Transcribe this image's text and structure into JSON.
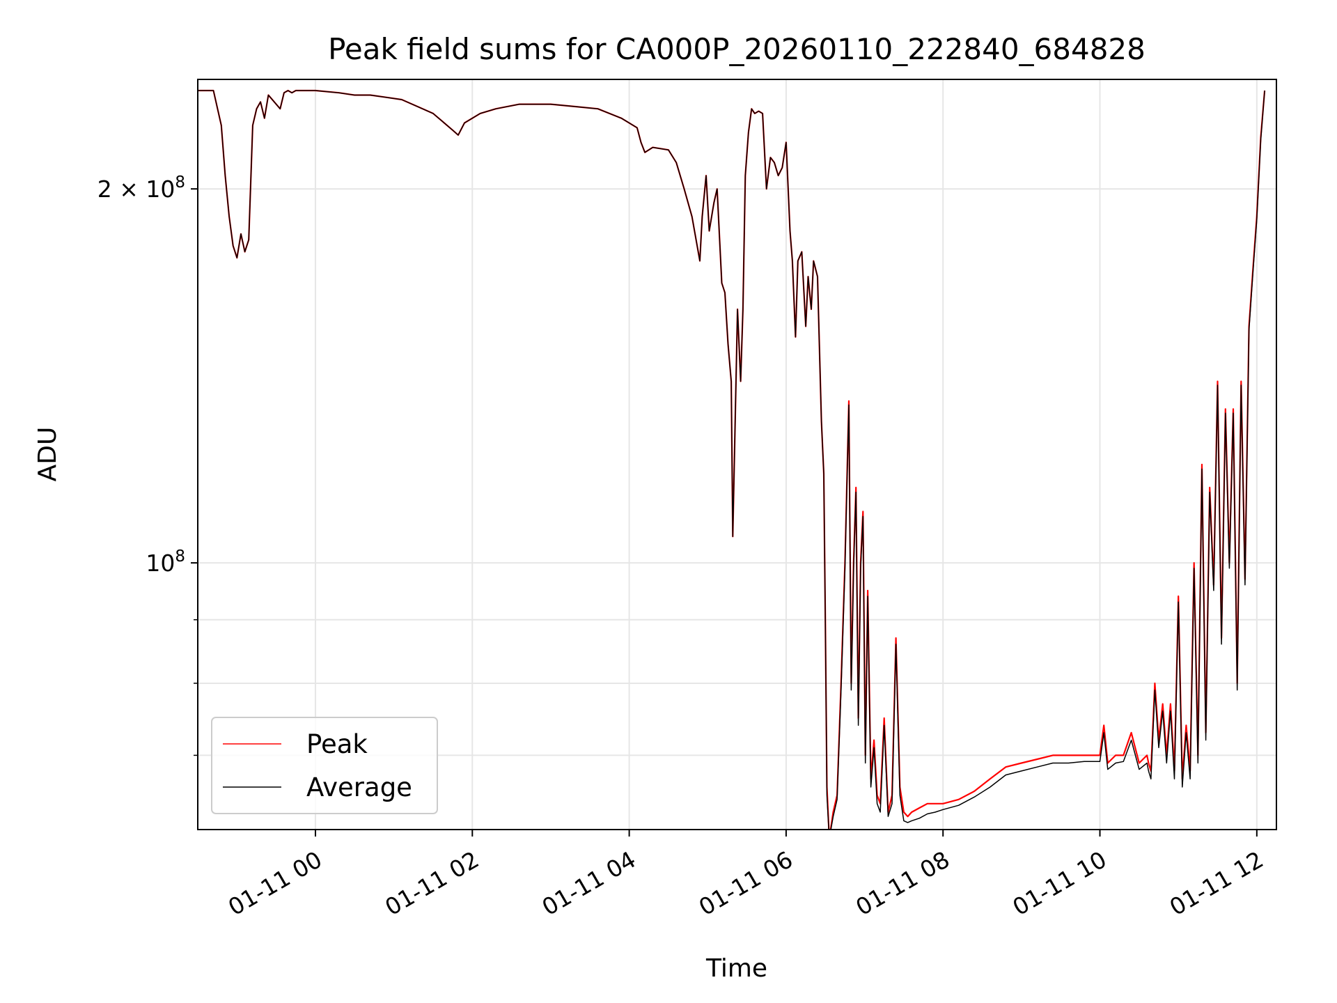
{
  "chart_data": {
    "type": "line",
    "title": "Peak field sums for CA000P_20260110_222840_684828",
    "xlabel": "Time",
    "ylabel": "ADU",
    "y_scale": "log",
    "grid": true,
    "legend_position": "lower-left",
    "x_ticks": [
      "01-11 00",
      "01-11 02",
      "01-11 04",
      "01-11 06",
      "01-11 08",
      "01-11 10",
      "01-11 12"
    ],
    "y_ticks": [
      {
        "value": 200000000,
        "label": "2 × 10^8"
      },
      {
        "value": 100000000,
        "label": "10^8"
      }
    ],
    "x_range_hours": [
      -1.5,
      12.25
    ],
    "ylim": [
      61000000,
      245000000
    ],
    "series": [
      {
        "name": "Peak",
        "color": "#ff0000",
        "x_hours": [
          -1.5,
          -1.3,
          -1.2,
          -1.15,
          -1.1,
          -1.05,
          -1.0,
          -0.95,
          -0.9,
          -0.85,
          -0.8,
          -0.75,
          -0.7,
          -0.65,
          -0.6,
          -0.55,
          -0.45,
          -0.4,
          -0.35,
          -0.3,
          -0.25,
          -0.2,
          -0.1,
          0.0,
          0.3,
          0.5,
          0.7,
          0.9,
          1.1,
          1.3,
          1.5,
          1.75,
          1.82,
          1.9,
          2.1,
          2.3,
          2.6,
          3.0,
          3.3,
          3.6,
          3.9,
          4.1,
          4.15,
          4.2,
          4.3,
          4.5,
          4.6,
          4.7,
          4.8,
          4.9,
          4.93,
          4.98,
          5.02,
          5.08,
          5.12,
          5.18,
          5.22,
          5.26,
          5.3,
          5.32,
          5.38,
          5.42,
          5.45,
          5.48,
          5.52,
          5.56,
          5.6,
          5.65,
          5.7,
          5.75,
          5.8,
          5.85,
          5.9,
          5.95,
          6.0,
          6.05,
          6.08,
          6.12,
          6.15,
          6.2,
          6.25,
          6.28,
          6.32,
          6.35,
          6.4,
          6.45,
          6.48,
          6.5,
          6.52,
          6.55,
          6.6,
          6.65,
          6.7,
          6.75,
          6.8,
          6.83,
          6.86,
          6.89,
          6.92,
          6.95,
          6.98,
          7.01,
          7.04,
          7.08,
          7.12,
          7.16,
          7.2,
          7.25,
          7.3,
          7.35,
          7.4,
          7.45,
          7.5,
          7.55,
          7.6,
          7.7,
          7.8,
          7.9,
          8.0,
          8.2,
          8.4,
          8.6,
          8.8,
          9.0,
          9.2,
          9.4,
          9.6,
          9.8,
          10.0,
          10.05,
          10.1,
          10.2,
          10.3,
          10.4,
          10.5,
          10.6,
          10.62,
          10.65,
          10.7,
          10.75,
          10.8,
          10.85,
          10.9,
          10.95,
          11.0,
          11.05,
          11.1,
          11.15,
          11.2,
          11.25,
          11.3,
          11.35,
          11.4,
          11.45,
          11.5,
          11.55,
          11.6,
          11.65,
          11.7,
          11.75,
          11.8,
          11.85,
          11.9,
          11.95,
          12.0,
          12.05,
          12.1
        ],
        "values": [
          240000000,
          240000000,
          225000000,
          205000000,
          190000000,
          180000000,
          176000000,
          184000000,
          178000000,
          182000000,
          225000000,
          232000000,
          235000000,
          228000000,
          238000000,
          236000000,
          232000000,
          239000000,
          240000000,
          239000000,
          240000000,
          240000000,
          240000000,
          240000000,
          239000000,
          238000000,
          238000000,
          237000000,
          236000000,
          233000000,
          230000000,
          223000000,
          221000000,
          226000000,
          230000000,
          232000000,
          234000000,
          234000000,
          233000000,
          232000000,
          228000000,
          224000000,
          218000000,
          214000000,
          216000000,
          215000000,
          210000000,
          200000000,
          190000000,
          175000000,
          190000000,
          205000000,
          185000000,
          195000000,
          200000000,
          168000000,
          165000000,
          150000000,
          140000000,
          105000000,
          160000000,
          140000000,
          160000000,
          205000000,
          222000000,
          232000000,
          230000000,
          231000000,
          230000000,
          200000000,
          212000000,
          210000000,
          205000000,
          208000000,
          218000000,
          185000000,
          175000000,
          152000000,
          175000000,
          178000000,
          155000000,
          170000000,
          160000000,
          175000000,
          170000000,
          130000000,
          118000000,
          90000000,
          66000000,
          60000000,
          63000000,
          65000000,
          80000000,
          100000000,
          135000000,
          80000000,
          100000000,
          115000000,
          75000000,
          100000000,
          110000000,
          70000000,
          95000000,
          67000000,
          72000000,
          65000000,
          64000000,
          75000000,
          63000000,
          65000000,
          87000000,
          66000000,
          63000000,
          62500000,
          63000000,
          63500000,
          64000000,
          64000000,
          64000000,
          64500000,
          65500000,
          67000000,
          68500000,
          69000000,
          69500000,
          70000000,
          70000000,
          70000000,
          70000000,
          74000000,
          69000000,
          70000000,
          70000000,
          73000000,
          69000000,
          70000000,
          69000000,
          68000000,
          80000000,
          72000000,
          77000000,
          70000000,
          77000000,
          68000000,
          94000000,
          67000000,
          74000000,
          68000000,
          100000000,
          70000000,
          120000000,
          73000000,
          115000000,
          96000000,
          140000000,
          87000000,
          133000000,
          100000000,
          133000000,
          80000000,
          140000000,
          97000000,
          155000000,
          172000000,
          190000000,
          220000000,
          240000000
        ]
      },
      {
        "name": "Average",
        "color": "#000000",
        "x_hours": [
          -1.5,
          -1.3,
          -1.2,
          -1.15,
          -1.1,
          -1.05,
          -1.0,
          -0.95,
          -0.9,
          -0.85,
          -0.8,
          -0.75,
          -0.7,
          -0.65,
          -0.6,
          -0.55,
          -0.45,
          -0.4,
          -0.35,
          -0.3,
          -0.25,
          -0.2,
          -0.1,
          0.0,
          0.3,
          0.5,
          0.7,
          0.9,
          1.1,
          1.3,
          1.5,
          1.75,
          1.82,
          1.9,
          2.1,
          2.3,
          2.6,
          3.0,
          3.3,
          3.6,
          3.9,
          4.1,
          4.15,
          4.2,
          4.3,
          4.5,
          4.6,
          4.7,
          4.8,
          4.9,
          4.93,
          4.98,
          5.02,
          5.08,
          5.12,
          5.18,
          5.22,
          5.26,
          5.3,
          5.32,
          5.38,
          5.42,
          5.45,
          5.48,
          5.52,
          5.56,
          5.6,
          5.65,
          5.7,
          5.75,
          5.8,
          5.85,
          5.9,
          5.95,
          6.0,
          6.05,
          6.08,
          6.12,
          6.15,
          6.2,
          6.25,
          6.28,
          6.32,
          6.35,
          6.4,
          6.45,
          6.48,
          6.5,
          6.52,
          6.55,
          6.6,
          6.65,
          6.7,
          6.75,
          6.8,
          6.83,
          6.86,
          6.89,
          6.92,
          6.95,
          6.98,
          7.01,
          7.04,
          7.08,
          7.12,
          7.16,
          7.2,
          7.25,
          7.3,
          7.35,
          7.4,
          7.45,
          7.5,
          7.55,
          7.6,
          7.7,
          7.8,
          7.9,
          8.0,
          8.2,
          8.4,
          8.6,
          8.8,
          9.0,
          9.2,
          9.4,
          9.6,
          9.8,
          10.0,
          10.05,
          10.1,
          10.2,
          10.3,
          10.4,
          10.5,
          10.6,
          10.62,
          10.65,
          10.7,
          10.75,
          10.8,
          10.85,
          10.9,
          10.95,
          11.0,
          11.05,
          11.1,
          11.15,
          11.2,
          11.25,
          11.3,
          11.35,
          11.4,
          11.45,
          11.5,
          11.55,
          11.6,
          11.65,
          11.7,
          11.75,
          11.8,
          11.85,
          11.9,
          11.95,
          12.0,
          12.05,
          12.1
        ],
        "values": [
          240000000,
          240000000,
          225000000,
          205000000,
          190000000,
          180000000,
          176000000,
          184000000,
          178000000,
          182000000,
          225000000,
          232000000,
          235000000,
          228000000,
          238000000,
          236000000,
          232000000,
          239000000,
          240000000,
          239000000,
          240000000,
          240000000,
          240000000,
          240000000,
          239000000,
          238000000,
          238000000,
          237000000,
          236000000,
          233000000,
          230000000,
          223000000,
          221000000,
          226000000,
          230000000,
          232000000,
          234000000,
          234000000,
          233000000,
          232000000,
          228000000,
          224000000,
          218000000,
          214000000,
          216000000,
          215000000,
          210000000,
          200000000,
          190000000,
          175000000,
          190000000,
          205000000,
          185000000,
          195000000,
          200000000,
          168000000,
          165000000,
          150000000,
          140000000,
          105000000,
          160000000,
          140000000,
          160000000,
          205000000,
          222000000,
          232000000,
          230000000,
          231000000,
          230000000,
          200000000,
          212000000,
          210000000,
          205000000,
          208000000,
          218000000,
          185000000,
          175000000,
          152000000,
          175000000,
          178000000,
          155000000,
          170000000,
          160000000,
          175000000,
          170000000,
          130000000,
          118000000,
          90000000,
          65000000,
          60000000,
          62500000,
          64500000,
          79000000,
          99000000,
          134000000,
          79000000,
          99000000,
          114000000,
          74000000,
          99000000,
          109000000,
          69000000,
          94000000,
          66000000,
          71000000,
          64000000,
          63000000,
          74000000,
          62500000,
          64000000,
          86000000,
          65000000,
          62000000,
          61800000,
          62000000,
          62300000,
          62800000,
          63000000,
          63300000,
          63800000,
          64800000,
          66000000,
          67500000,
          68000000,
          68500000,
          69000000,
          69000000,
          69200000,
          69200000,
          73000000,
          68200000,
          69000000,
          69200000,
          72000000,
          68200000,
          69000000,
          68000000,
          67000000,
          79000000,
          71000000,
          76000000,
          69000000,
          76000000,
          67000000,
          93000000,
          66000000,
          73000000,
          67000000,
          99000000,
          69000000,
          119000000,
          72000000,
          114000000,
          95000000,
          139000000,
          86000000,
          132000000,
          99000000,
          132000000,
          79000000,
          139000000,
          96000000,
          154000000,
          171000000,
          189000000,
          219000000,
          240000000
        ]
      }
    ]
  }
}
